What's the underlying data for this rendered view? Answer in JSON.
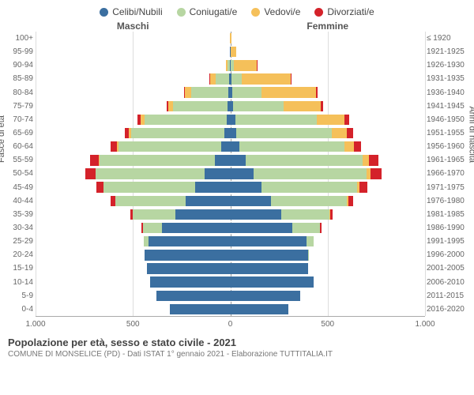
{
  "type": "population-pyramid",
  "max_value": 1000,
  "legend": [
    {
      "label": "Celibi/Nubili",
      "color": "#3b6fa0"
    },
    {
      "label": "Coniugati/e",
      "color": "#b7d6a2"
    },
    {
      "label": "Vedovi/e",
      "color": "#f5c05a"
    },
    {
      "label": "Divorziati/e",
      "color": "#d4222a"
    }
  ],
  "headers": {
    "male": "Maschi",
    "female": "Femmine"
  },
  "y_titles": {
    "left": "Fasce di età",
    "right": "Anni di nascita"
  },
  "colors": {
    "celibi": "#3b6fa0",
    "coniugati": "#b7d6a2",
    "vedovi": "#f5c05a",
    "divorziati": "#d4222a",
    "grid": "#dddddd",
    "center": "#999999",
    "background": "#ffffff"
  },
  "axis_ticks": [
    {
      "pos": 0,
      "label": "1.000"
    },
    {
      "pos": 0.25,
      "label": "500"
    },
    {
      "pos": 0.5,
      "label": "0"
    },
    {
      "pos": 0.75,
      "label": "500"
    },
    {
      "pos": 1.0,
      "label": "1.000"
    }
  ],
  "rows": [
    {
      "age": "100+",
      "birth": "≤ 1920",
      "m": [
        0,
        0,
        1,
        0
      ],
      "f": [
        0,
        0,
        6,
        0
      ]
    },
    {
      "age": "95-99",
      "birth": "1921-1925",
      "m": [
        1,
        0,
        3,
        0
      ],
      "f": [
        0,
        2,
        30,
        0
      ]
    },
    {
      "age": "90-94",
      "birth": "1926-1930",
      "m": [
        3,
        10,
        10,
        0
      ],
      "f": [
        2,
        15,
        120,
        2
      ]
    },
    {
      "age": "85-89",
      "birth": "1931-1935",
      "m": [
        5,
        70,
        30,
        2
      ],
      "f": [
        5,
        55,
        250,
        5
      ]
    },
    {
      "age": "80-84",
      "birth": "1936-1940",
      "m": [
        10,
        190,
        35,
        3
      ],
      "f": [
        10,
        150,
        280,
        8
      ]
    },
    {
      "age": "75-79",
      "birth": "1941-1945",
      "m": [
        15,
        280,
        25,
        5
      ],
      "f": [
        15,
        260,
        190,
        12
      ]
    },
    {
      "age": "70-74",
      "birth": "1946-1950",
      "m": [
        20,
        420,
        20,
        15
      ],
      "f": [
        25,
        420,
        140,
        25
      ]
    },
    {
      "age": "65-69",
      "birth": "1951-1955",
      "m": [
        30,
        480,
        10,
        20
      ],
      "f": [
        30,
        490,
        80,
        30
      ]
    },
    {
      "age": "60-64",
      "birth": "1956-1960",
      "m": [
        45,
        530,
        8,
        30
      ],
      "f": [
        45,
        540,
        50,
        35
      ]
    },
    {
      "age": "55-59",
      "birth": "1961-1965",
      "m": [
        80,
        590,
        5,
        45
      ],
      "f": [
        80,
        600,
        30,
        50
      ]
    },
    {
      "age": "50-54",
      "birth": "1966-1970",
      "m": [
        130,
        560,
        3,
        50
      ],
      "f": [
        120,
        580,
        20,
        55
      ]
    },
    {
      "age": "45-49",
      "birth": "1971-1975",
      "m": [
        180,
        470,
        2,
        35
      ],
      "f": [
        160,
        490,
        12,
        40
      ]
    },
    {
      "age": "40-44",
      "birth": "1976-1980",
      "m": [
        230,
        360,
        0,
        25
      ],
      "f": [
        210,
        390,
        5,
        28
      ]
    },
    {
      "age": "35-39",
      "birth": "1981-1985",
      "m": [
        280,
        220,
        0,
        12
      ],
      "f": [
        260,
        250,
        2,
        15
      ]
    },
    {
      "age": "30-34",
      "birth": "1986-1990",
      "m": [
        350,
        100,
        0,
        5
      ],
      "f": [
        320,
        140,
        0,
        7
      ]
    },
    {
      "age": "25-29",
      "birth": "1991-1995",
      "m": [
        420,
        25,
        0,
        0
      ],
      "f": [
        390,
        40,
        0,
        0
      ]
    },
    {
      "age": "20-24",
      "birth": "1996-2000",
      "m": [
        440,
        2,
        0,
        0
      ],
      "f": [
        400,
        3,
        0,
        0
      ]
    },
    {
      "age": "15-19",
      "birth": "2001-2005",
      "m": [
        430,
        0,
        0,
        0
      ],
      "f": [
        400,
        0,
        0,
        0
      ]
    },
    {
      "age": "10-14",
      "birth": "2006-2010",
      "m": [
        410,
        0,
        0,
        0
      ],
      "f": [
        430,
        0,
        0,
        0
      ]
    },
    {
      "age": "5-9",
      "birth": "2011-2015",
      "m": [
        380,
        0,
        0,
        0
      ],
      "f": [
        360,
        0,
        0,
        0
      ]
    },
    {
      "age": "0-4",
      "birth": "2016-2020",
      "m": [
        310,
        0,
        0,
        0
      ],
      "f": [
        300,
        0,
        0,
        0
      ]
    }
  ],
  "footer": {
    "title": "Popolazione per età, sesso e stato civile - 2021",
    "subtitle": "COMUNE DI MONSELICE (PD) - Dati ISTAT 1° gennaio 2021 - Elaborazione TUTTITALIA.IT"
  },
  "font_sizes": {
    "legend": 12,
    "header": 12,
    "labels": 10,
    "title": 13,
    "subtitle": 10
  }
}
